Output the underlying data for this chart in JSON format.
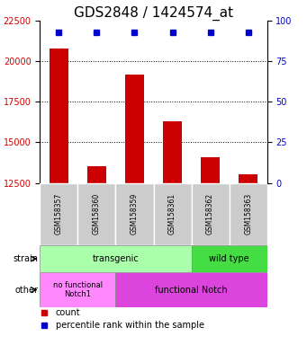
{
  "title": "GDS2848 / 1424574_at",
  "samples": [
    "GSM158357",
    "GSM158360",
    "GSM158359",
    "GSM158361",
    "GSM158362",
    "GSM158363"
  ],
  "counts": [
    20800,
    13500,
    19200,
    16300,
    14100,
    13000
  ],
  "percentiles": [
    99,
    99,
    99,
    99,
    99,
    99
  ],
  "ylim_left": [
    12500,
    22500
  ],
  "ylim_right": [
    0,
    100
  ],
  "yticks_left": [
    12500,
    15000,
    17500,
    20000,
    22500
  ],
  "yticks_right": [
    0,
    25,
    50,
    75,
    100
  ],
  "bar_color": "#cc0000",
  "dot_color": "#0000cc",
  "strain_labels": [
    {
      "text": "transgenic",
      "cols": [
        0,
        1,
        2,
        3
      ],
      "color": "#aaffaa"
    },
    {
      "text": "wild type",
      "cols": [
        4,
        5
      ],
      "color": "#44dd44"
    }
  ],
  "other_labels": [
    {
      "text": "no functional\nNotch1",
      "cols": [
        0,
        1
      ],
      "color": "#ff88ff"
    },
    {
      "text": "functional Notch",
      "cols": [
        2,
        3,
        4,
        5
      ],
      "color": "#dd44dd"
    }
  ],
  "strain_row_label": "strain",
  "other_row_label": "other",
  "legend_count_label": "count",
  "legend_pct_label": "percentile rank within the sample",
  "title_fontsize": 11,
  "axis_label_color_left": "#cc0000",
  "axis_label_color_right": "#0000cc"
}
